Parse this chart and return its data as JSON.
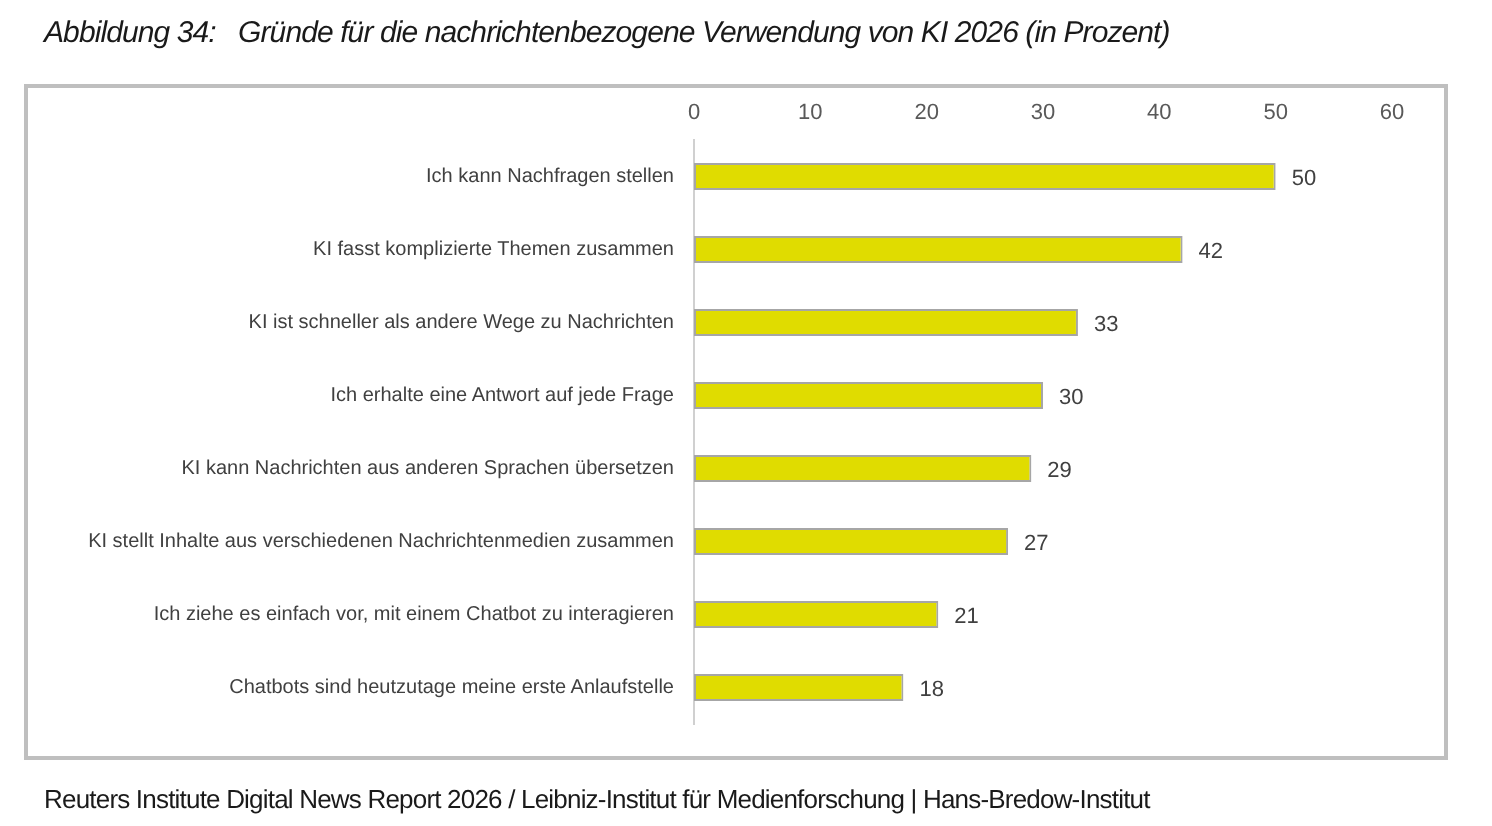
{
  "chart_data": {
    "type": "bar",
    "orientation": "horizontal",
    "title": "Abbildung 34:   Gründe für die nachrichtenbezogene Verwendung von KI 2026 (in Prozent)",
    "categories": [
      "Ich kann Nachfragen stellen",
      "KI fasst komplizierte Themen zusammen",
      "KI ist schneller als andere Wege zu Nachrichten",
      "Ich erhalte eine Antwort auf jede Frage",
      "KI kann Nachrichten aus anderen Sprachen übersetzen",
      "KI stellt Inhalte aus verschiedenen Nachrichtenmedien zusammen",
      "Ich ziehe es einfach vor, mit einem Chatbot zu interagieren",
      "Chatbots sind heutzutage meine erste Anlaufstelle"
    ],
    "values": [
      50,
      42,
      33,
      30,
      29,
      27,
      21,
      18
    ],
    "color": "#e0dc00",
    "xlim": [
      0,
      60
    ],
    "xticks": [
      0,
      10,
      20,
      30,
      40,
      50,
      60
    ],
    "data_labels": true,
    "grid": false,
    "annotations": [
      "Reuters Institute Digital News Report 2026 / Leibniz-Institut für Medienforschung | Hans-Bredow-Institut"
    ]
  }
}
